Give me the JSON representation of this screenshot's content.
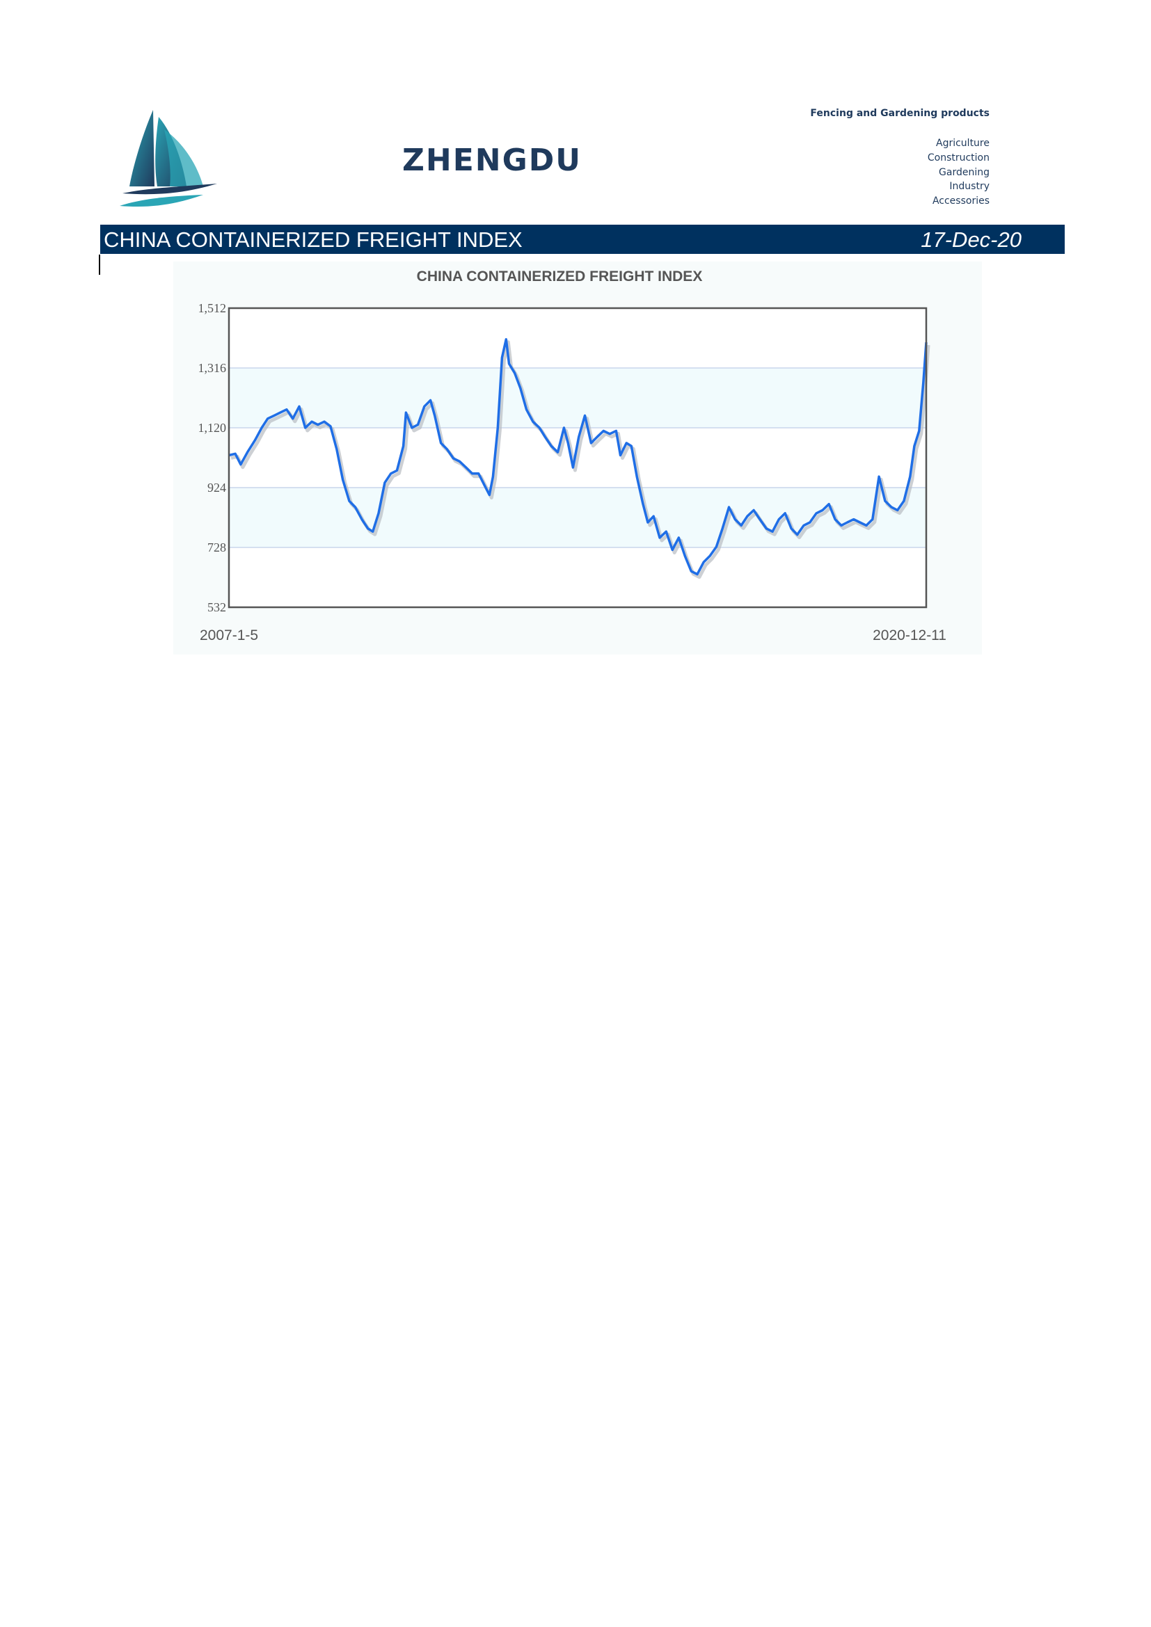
{
  "header": {
    "brand": "ZHENGDU",
    "tagline": "Fencing and Gardening products",
    "categories": [
      "Agriculture",
      "Construction",
      "Gardening",
      "Industry",
      "Accessories"
    ],
    "logo_icon": "sailboat-logo-icon"
  },
  "banner": {
    "title": "CHINA CONTAINERIZED FREIGHT INDEX",
    "date": "17-Dec-20"
  },
  "colors": {
    "navy": "#00315f",
    "line": "#1f6ee6",
    "band": "#f1fbfd"
  },
  "chart_data": {
    "type": "line",
    "title": "CHINA CONTAINERIZED FREIGHT INDEX",
    "x_start_label": "2007-1-5",
    "x_end_label": "2020-12-11",
    "x_range": [
      "2007-01-05",
      "2020-12-11"
    ],
    "ylim": [
      532,
      1512
    ],
    "y_ticks": [
      532,
      728,
      924,
      1120,
      1316,
      1512
    ],
    "y_tick_labels": [
      "532",
      "728",
      "924",
      "1,120",
      "1,316",
      "1,512"
    ],
    "grid": true,
    "legend": "none",
    "series": [
      {
        "points": [
          [
            "2007-01-05",
            1030
          ],
          [
            "2007-02-20",
            1035
          ],
          [
            "2007-04-01",
            1000
          ],
          [
            "2007-05-20",
            1040
          ],
          [
            "2007-07-15",
            1080
          ],
          [
            "2007-09-01",
            1120
          ],
          [
            "2007-10-15",
            1150
          ],
          [
            "2007-12-01",
            1160
          ],
          [
            "2008-01-15",
            1170
          ],
          [
            "2008-03-01",
            1180
          ],
          [
            "2008-04-15",
            1150
          ],
          [
            "2008-06-01",
            1190
          ],
          [
            "2008-07-15",
            1120
          ],
          [
            "2008-09-01",
            1140
          ],
          [
            "2008-10-15",
            1130
          ],
          [
            "2008-12-01",
            1140
          ],
          [
            "2009-01-15",
            1125
          ],
          [
            "2009-03-01",
            1050
          ],
          [
            "2009-04-15",
            950
          ],
          [
            "2009-06-01",
            880
          ],
          [
            "2009-07-15",
            860
          ],
          [
            "2009-09-01",
            820
          ],
          [
            "2009-10-15",
            790
          ],
          [
            "2009-11-20",
            780
          ],
          [
            "2010-01-01",
            840
          ],
          [
            "2010-02-15",
            940
          ],
          [
            "2010-04-01",
            970
          ],
          [
            "2010-05-15",
            980
          ],
          [
            "2010-07-01",
            1060
          ],
          [
            "2010-07-20",
            1170
          ],
          [
            "2010-09-01",
            1120
          ],
          [
            "2010-10-15",
            1130
          ],
          [
            "2010-12-01",
            1190
          ],
          [
            "2011-01-15",
            1210
          ],
          [
            "2011-02-15",
            1160
          ],
          [
            "2011-04-01",
            1070
          ],
          [
            "2011-05-15",
            1050
          ],
          [
            "2011-07-01",
            1020
          ],
          [
            "2011-08-15",
            1010
          ],
          [
            "2011-10-01",
            990
          ],
          [
            "2011-11-15",
            970
          ],
          [
            "2012-01-01",
            970
          ],
          [
            "2012-02-15",
            930
          ],
          [
            "2012-03-20",
            900
          ],
          [
            "2012-04-15",
            960
          ],
          [
            "2012-05-20",
            1120
          ],
          [
            "2012-06-20",
            1350
          ],
          [
            "2012-07-20",
            1410
          ],
          [
            "2012-08-10",
            1330
          ],
          [
            "2012-09-20",
            1300
          ],
          [
            "2012-11-01",
            1250
          ],
          [
            "2012-12-15",
            1180
          ],
          [
            "2013-02-01",
            1140
          ],
          [
            "2013-03-20",
            1120
          ],
          [
            "2013-05-01",
            1090
          ],
          [
            "2013-06-15",
            1060
          ],
          [
            "2013-08-01",
            1040
          ],
          [
            "2013-09-15",
            1120
          ],
          [
            "2013-10-15",
            1070
          ],
          [
            "2013-11-20",
            990
          ],
          [
            "2014-01-01",
            1090
          ],
          [
            "2014-02-15",
            1160
          ],
          [
            "2014-04-01",
            1070
          ],
          [
            "2014-05-15",
            1090
          ],
          [
            "2014-07-01",
            1110
          ],
          [
            "2014-08-15",
            1100
          ],
          [
            "2014-10-01",
            1110
          ],
          [
            "2014-11-01",
            1030
          ],
          [
            "2014-12-15",
            1070
          ],
          [
            "2015-01-20",
            1060
          ],
          [
            "2015-03-01",
            960
          ],
          [
            "2015-04-15",
            870
          ],
          [
            "2015-05-20",
            810
          ],
          [
            "2015-07-01",
            830
          ],
          [
            "2015-08-15",
            760
          ],
          [
            "2015-10-01",
            780
          ],
          [
            "2015-11-15",
            720
          ],
          [
            "2016-01-01",
            760
          ],
          [
            "2016-02-15",
            700
          ],
          [
            "2016-04-01",
            650
          ],
          [
            "2016-05-15",
            640
          ],
          [
            "2016-07-01",
            680
          ],
          [
            "2016-08-15",
            700
          ],
          [
            "2016-10-01",
            730
          ],
          [
            "2016-11-15",
            790
          ],
          [
            "2017-01-01",
            860
          ],
          [
            "2017-02-15",
            820
          ],
          [
            "2017-04-01",
            800
          ],
          [
            "2017-05-15",
            830
          ],
          [
            "2017-07-01",
            850
          ],
          [
            "2017-08-15",
            820
          ],
          [
            "2017-10-01",
            790
          ],
          [
            "2017-11-15",
            780
          ],
          [
            "2018-01-01",
            820
          ],
          [
            "2018-02-15",
            840
          ],
          [
            "2018-04-01",
            790
          ],
          [
            "2018-05-15",
            770
          ],
          [
            "2018-07-01",
            800
          ],
          [
            "2018-08-15",
            810
          ],
          [
            "2018-10-01",
            840
          ],
          [
            "2018-11-15",
            850
          ],
          [
            "2019-01-01",
            870
          ],
          [
            "2019-02-15",
            820
          ],
          [
            "2019-04-01",
            800
          ],
          [
            "2019-05-15",
            810
          ],
          [
            "2019-07-01",
            820
          ],
          [
            "2019-08-15",
            810
          ],
          [
            "2019-10-01",
            800
          ],
          [
            "2019-11-15",
            820
          ],
          [
            "2020-01-01",
            960
          ],
          [
            "2020-02-15",
            880
          ],
          [
            "2020-04-01",
            860
          ],
          [
            "2020-05-15",
            850
          ],
          [
            "2020-07-01",
            880
          ],
          [
            "2020-08-15",
            960
          ],
          [
            "2020-09-15",
            1060
          ],
          [
            "2020-10-20",
            1110
          ],
          [
            "2020-11-20",
            1270
          ],
          [
            "2020-12-11",
            1400
          ]
        ]
      }
    ]
  }
}
